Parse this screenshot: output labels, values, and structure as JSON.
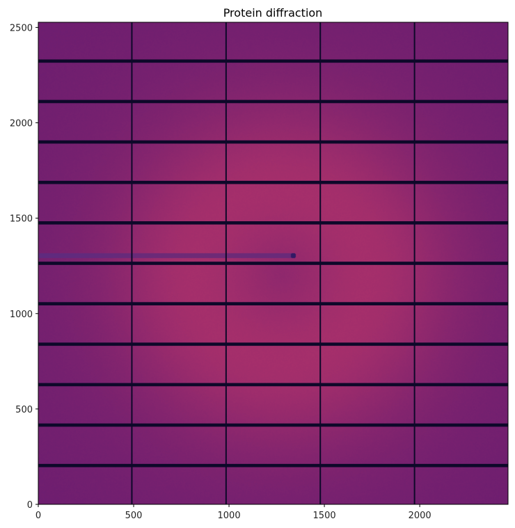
{
  "chart_data": {
    "type": "heatmap",
    "title": "Protein diffraction",
    "xlabel": "",
    "ylabel": "",
    "xlim": [
      0,
      2463
    ],
    "ylim": [
      0,
      2527
    ],
    "xticks": [
      0,
      500,
      1000,
      1500,
      2000
    ],
    "yticks": [
      0,
      500,
      1000,
      1500,
      2000,
      2500
    ],
    "xtick_labels": [
      "0",
      "500",
      "1000",
      "1500",
      "2000"
    ],
    "ytick_labels": [
      "0",
      "500",
      "1000",
      "1500",
      "2000",
      "2500"
    ],
    "colormap": "magma",
    "grid": false,
    "origin": "lower",
    "vertical_gaps_x": [
      487,
      981,
      1475,
      1969
    ],
    "gap_width_x": 7,
    "horizontal_gaps_y": [
      195,
      407,
      619,
      831,
      1043,
      1255,
      1467,
      1679,
      1891,
      2103,
      2315
    ],
    "gap_width_y": 17,
    "beam_center": [
      1335,
      1305
    ],
    "beamstop_shadow": {
      "x": [
        0,
        1335
      ],
      "y": 1305
    },
    "colors": {
      "edge": "#6a1d70",
      "center": "#a8306b",
      "gap": "#0d0829",
      "shadow": "#5a2a80"
    }
  }
}
